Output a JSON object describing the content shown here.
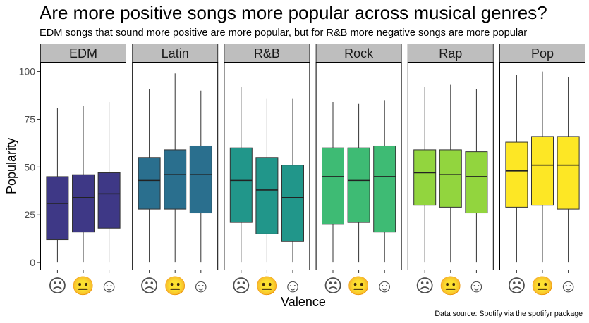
{
  "chart_data": {
    "type": "boxplot",
    "title": "Are more positive songs more popular across musical genres?",
    "subtitle": "EDM songs that sound more positive are more popular, but for R&B more negative songs are more popular",
    "caption": "Data source: Spotify via the spotifyr package",
    "xlabel": "Valence",
    "ylabel": "Popularity",
    "ylim": [
      -4,
      105
    ],
    "yticks": [
      0,
      25,
      50,
      75,
      100
    ],
    "x_categories": [
      {
        "key": "negative",
        "glyph": "☹",
        "icon": "frowning-face-icon"
      },
      {
        "key": "neutral",
        "glyph": "😐",
        "icon": "neutral-face-icon"
      },
      {
        "key": "positive",
        "glyph": "☺",
        "icon": "smiling-face-icon"
      }
    ],
    "panels": [
      {
        "genre": "EDM",
        "color": "#3E3886",
        "boxes": [
          {
            "min": 0,
            "q1": 12,
            "median": 31,
            "q3": 45,
            "max": 81
          },
          {
            "min": 0,
            "q1": 16,
            "median": 34,
            "q3": 46,
            "max": 82
          },
          {
            "min": 0,
            "q1": 18,
            "median": 36,
            "q3": 47,
            "max": 84
          }
        ]
      },
      {
        "genre": "Latin",
        "color": "#2A6F8E",
        "boxes": [
          {
            "min": 0,
            "q1": 28,
            "median": 43,
            "q3": 55,
            "max": 91
          },
          {
            "min": 0,
            "q1": 28,
            "median": 46,
            "q3": 59,
            "max": 99
          },
          {
            "min": 0,
            "q1": 26,
            "median": 46,
            "q3": 61,
            "max": 90
          }
        ]
      },
      {
        "genre": "R&B",
        "color": "#21968A",
        "boxes": [
          {
            "min": 0,
            "q1": 21,
            "median": 43,
            "q3": 60,
            "max": 92
          },
          {
            "min": 0,
            "q1": 15,
            "median": 38,
            "q3": 55,
            "max": 86
          },
          {
            "min": 0,
            "q1": 11,
            "median": 34,
            "q3": 51,
            "max": 86
          }
        ]
      },
      {
        "genre": "Rock",
        "color": "#3EBB74",
        "boxes": [
          {
            "min": 0,
            "q1": 20,
            "median": 45,
            "q3": 60,
            "max": 84
          },
          {
            "min": 0,
            "q1": 21,
            "median": 43,
            "q3": 60,
            "max": 83
          },
          {
            "min": 0,
            "q1": 16,
            "median": 45,
            "q3": 61,
            "max": 85
          }
        ]
      },
      {
        "genre": "Rap",
        "color": "#92D53E",
        "boxes": [
          {
            "min": 0,
            "q1": 30,
            "median": 47,
            "q3": 59,
            "max": 92
          },
          {
            "min": 0,
            "q1": 29,
            "median": 46,
            "q3": 59,
            "max": 93
          },
          {
            "min": 0,
            "q1": 26,
            "median": 45,
            "q3": 58,
            "max": 91
          }
        ]
      },
      {
        "genre": "Pop",
        "color": "#FDE725",
        "boxes": [
          {
            "min": 0,
            "q1": 29,
            "median": 48,
            "q3": 63,
            "max": 98
          },
          {
            "min": 0,
            "q1": 30,
            "median": 51,
            "q3": 66,
            "max": 100
          },
          {
            "min": 0,
            "q1": 28,
            "median": 51,
            "q3": 66,
            "max": 97
          }
        ]
      }
    ],
    "grid": false,
    "legend": "none",
    "colors": {
      "strip_fill": "#BEBEBE",
      "panel_border": "#000000",
      "axis_text": "#4D4D4D",
      "face_glyph": "#4D4D4D"
    }
  }
}
